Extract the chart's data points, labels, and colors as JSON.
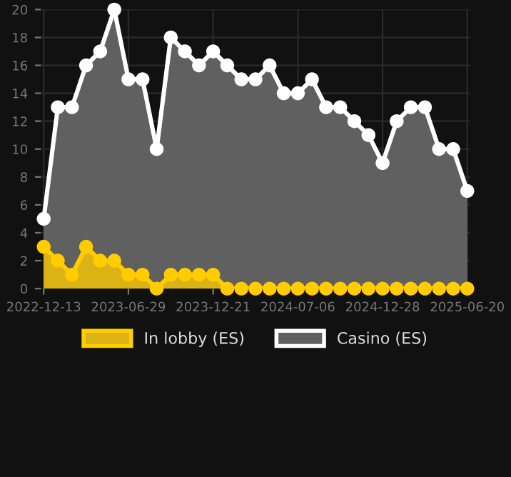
{
  "chart_data": {
    "type": "area",
    "categories": [
      "2022-12-13",
      null,
      null,
      null,
      null,
      null,
      "2023-06-29",
      null,
      null,
      null,
      null,
      null,
      "2023-12-21",
      null,
      null,
      null,
      null,
      null,
      "2024-07-06",
      null,
      null,
      null,
      null,
      null,
      "2024-12-28",
      null,
      null,
      null,
      null,
      null,
      "2025-06-20"
    ],
    "series": [
      {
        "name": "In lobby (ES)",
        "color": "#ffcc00",
        "values": [
          3,
          2,
          1,
          3,
          2,
          2,
          1,
          1,
          0,
          1,
          1,
          1,
          1,
          0,
          0,
          0,
          0,
          0,
          0,
          0,
          0,
          0,
          0,
          0,
          0,
          0,
          0,
          0,
          0,
          0,
          0
        ]
      },
      {
        "name": "Casino (ES)",
        "color": "#ffffff",
        "values": [
          5,
          13,
          13,
          16,
          17,
          20,
          15,
          15,
          10,
          18,
          17,
          16,
          17,
          16,
          15,
          15,
          16,
          14,
          14,
          15,
          13,
          13,
          12,
          11,
          9,
          12,
          13,
          13,
          10,
          10,
          7
        ]
      }
    ],
    "ylim": [
      0,
      20
    ],
    "yticks": [
      0,
      2,
      4,
      6,
      8,
      10,
      12,
      14,
      16,
      18,
      20
    ],
    "grid": true,
    "legend": "bottom",
    "marker": "circle",
    "line_style": "solid"
  }
}
